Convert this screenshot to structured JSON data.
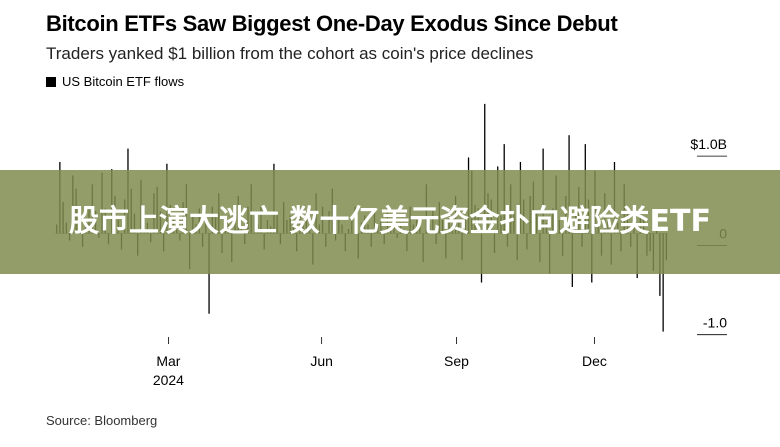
{
  "header": {
    "title": "Bitcoin ETFs Saw Biggest One-Day Exodus Since Debut",
    "subtitle": "Traders yanked $1 billion from the cohort as coin's price declines"
  },
  "legend": {
    "label": "US Bitcoin ETF flows",
    "color": "#000000"
  },
  "source": "Source: Bloomberg",
  "overlay": {
    "text": "股市上演大逃亡 数十亿美元资金扑向避险类ETF"
  },
  "chart_data": {
    "type": "bar",
    "series": [
      {
        "name": "US Bitcoin ETF flows",
        "values": [
          0.1,
          0.8,
          0.35,
          0.12,
          -0.08,
          0.65,
          0.5,
          0.22,
          -0.15,
          0.1,
          0.3,
          0.55,
          0.25,
          -0.05,
          0.68,
          0.28,
          -0.12,
          0.72,
          0.42,
          0.15,
          -0.18,
          0.38,
          0.95,
          0.5,
          0.22,
          -0.25,
          0.6,
          0.3,
          0.12,
          -0.1,
          0.45,
          0.52,
          0.25,
          -0.2,
          0.78,
          0.32,
          0.15,
          0.08,
          -0.08,
          0.35,
          0.55,
          -0.4,
          0.2,
          0.1,
          0.28,
          -0.15,
          0.12,
          -0.9,
          0.3,
          0.18,
          0.45,
          -0.22,
          0.15,
          0.1,
          -0.32,
          0.22,
          0.42,
          0.08,
          -0.12,
          0.3,
          0.55,
          0.2,
          0.1,
          0.3,
          -0.18,
          0.15,
          0.08,
          0.78,
          0.25,
          -0.12,
          0.35,
          0.15,
          0.2,
          0.1,
          -0.2,
          0.3,
          0.12,
          0.25,
          0.1,
          -0.35,
          0.45,
          0.1,
          0.3,
          -0.15,
          0.25,
          0.5,
          -0.08,
          0.18,
          0.1,
          -0.2,
          0.05,
          0.15,
          0.3,
          -0.28,
          0.12,
          0.2,
          0.1,
          -0.15,
          0.25,
          0.08,
          0.15,
          -0.12,
          0.28,
          0.1,
          0.2,
          -0.05,
          0.12,
          0.05,
          -0.2,
          0.3,
          0.1,
          0.15,
          0.08,
          -0.32,
          0.55,
          0.1,
          0.25,
          -0.12,
          0.35,
          0.15,
          -0.28,
          0.2,
          0.1,
          0.42,
          0.12,
          -0.3,
          0.18,
          0.85,
          0.7,
          0.32,
          0.28,
          -0.55,
          1.45,
          0.45,
          0.38,
          -0.22,
          0.75,
          0.2,
          1.0,
          -0.15,
          0.55,
          0.22,
          -0.3,
          0.8,
          0.38,
          -0.18,
          0.42,
          0.58,
          0.22,
          -0.32,
          0.95,
          0.12,
          -0.45,
          0.28,
          0.65,
          0.15,
          -0.25,
          0.42,
          1.1,
          -0.6,
          0.25,
          0.52,
          -0.15,
          1.0,
          0.38,
          -0.55,
          0.7,
          0.3,
          -0.25,
          0.45,
          0.15,
          -0.35,
          0.8,
          0.12,
          -0.2,
          0.55,
          0.3,
          -0.15,
          0.1,
          -0.5,
          0.2,
          0.15,
          -0.25,
          -0.2,
          -0.42,
          0.05,
          -0.7,
          -1.1,
          -0.3
        ]
      }
    ],
    "x_ticks": [
      {
        "label": "Mar",
        "sublabel": "2024",
        "pos": 0.185
      },
      {
        "label": "Jun",
        "sublabel": "",
        "pos": 0.435
      },
      {
        "label": "Sep",
        "sublabel": "",
        "pos": 0.655
      },
      {
        "label": "Dec",
        "sublabel": "",
        "pos": 0.88
      }
    ],
    "y_ticks": [
      {
        "value": 1.0,
        "label": "$1.0B"
      },
      {
        "value": 0,
        "label": "0"
      },
      {
        "value": -1.0,
        "label": "-1.0"
      }
    ],
    "ylim": [
      -1.25,
      1.55
    ],
    "grid": false,
    "bar_color": "#000000"
  }
}
